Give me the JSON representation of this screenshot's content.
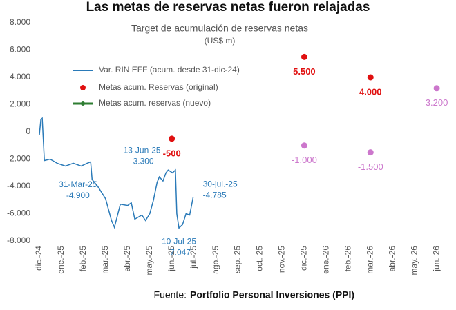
{
  "chart_data": {
    "type": "line",
    "title": "Las metas de reservas netas fueron relajadas",
    "subtitle": "Target de acumulación de reservas netas",
    "units": "(US$ m)",
    "source_prefix": "Fuente:",
    "source": "Portfolio Personal Inversiones (PPI)",
    "categories": [
      "dic.-24",
      "ene.-25",
      "feb.-25",
      "mar.-25",
      "abr.-25",
      "may.-25",
      "jun.-25",
      "jul.-25",
      "ago.-25",
      "sep.-25",
      "oct.-25",
      "nov.-25",
      "dic.-25",
      "ene.-26",
      "feb.-26",
      "mar.-26",
      "abr.-26",
      "may.-26",
      "jun.-26"
    ],
    "ylim": [
      -8000,
      8000
    ],
    "yticks": [
      {
        "value": -8000,
        "label": "-8.000"
      },
      {
        "value": -6000,
        "label": "-6.000"
      },
      {
        "value": -4000,
        "label": "-4.000"
      },
      {
        "value": -2000,
        "label": "-2.000"
      },
      0,
      {
        "value": 2000,
        "label": "2.000"
      },
      {
        "value": 4000,
        "label": "4.000"
      },
      {
        "value": 6000,
        "label": "6.000"
      },
      {
        "value": 8000,
        "label": "8.000"
      }
    ],
    "series": [
      {
        "name": "Var. RIN EFF (acum. desde 31-dic-24)",
        "type": "line",
        "color": "#2a7ab8",
        "x": [
          "2024-12-31",
          "2025-01-02",
          "2025-01-04",
          "2025-01-07",
          "2025-01-15",
          "2025-01-25",
          "2025-02-05",
          "2025-02-15",
          "2025-02-25",
          "2025-03-05",
          "2025-03-10",
          "2025-03-12",
          "2025-03-20",
          "2025-03-31",
          "2025-04-08",
          "2025-04-12",
          "2025-04-20",
          "2025-04-30",
          "2025-05-05",
          "2025-05-10",
          "2025-05-20",
          "2025-05-25",
          "2025-05-31",
          "2025-06-05",
          "2025-06-10",
          "2025-06-13",
          "2025-06-18",
          "2025-06-22",
          "2025-06-25",
          "2025-07-01",
          "2025-07-05",
          "2025-07-07",
          "2025-07-10",
          "2025-07-15",
          "2025-07-20",
          "2025-07-25",
          "2025-07-30"
        ],
        "values": [
          -200,
          900,
          1000,
          -2100,
          -2000,
          -2300,
          -2500,
          -2300,
          -2500,
          -2300,
          -2200,
          -3500,
          -4000,
          -4900,
          -6500,
          -7000,
          -5300,
          -5400,
          -5200,
          -6400,
          -6100,
          -6500,
          -6000,
          -5000,
          -3700,
          -3300,
          -3600,
          -3000,
          -2800,
          -3000,
          -2800,
          -6000,
          -7047,
          -6800,
          -6000,
          -6100,
          -4785
        ]
      },
      {
        "name": "Metas acum. Reservas (original)",
        "type": "scatter",
        "color": "#e01010",
        "x": [
          "2025-06",
          "2025-12",
          "2026-03"
        ],
        "values": [
          -500,
          5500,
          4000
        ],
        "value_labels": [
          "-500",
          "5.500",
          "4.000"
        ]
      },
      {
        "name": "Metas acum. reservas (nuevo)",
        "type": "scatter",
        "color": "#cc77cc",
        "legend_color": "#2e7d32",
        "x": [
          "2025-12",
          "2026-03",
          "2026-06"
        ],
        "values": [
          -1000,
          -1500,
          3200
        ],
        "value_labels": [
          "-1.000",
          "-1.500",
          "3.200"
        ]
      }
    ],
    "annotations": [
      {
        "x": "2025-03-31",
        "label": "31-Mar-25",
        "value_label": "-4.900"
      },
      {
        "x": "2025-06-13",
        "label": "13-Jun-25",
        "value_label": "-3.300"
      },
      {
        "x": "2025-07-10",
        "label": "10-Jul-25",
        "value_label": "-7.047"
      },
      {
        "x": "2025-07-30",
        "label": "30-jul.-25",
        "value_label": "-4.785"
      }
    ]
  }
}
